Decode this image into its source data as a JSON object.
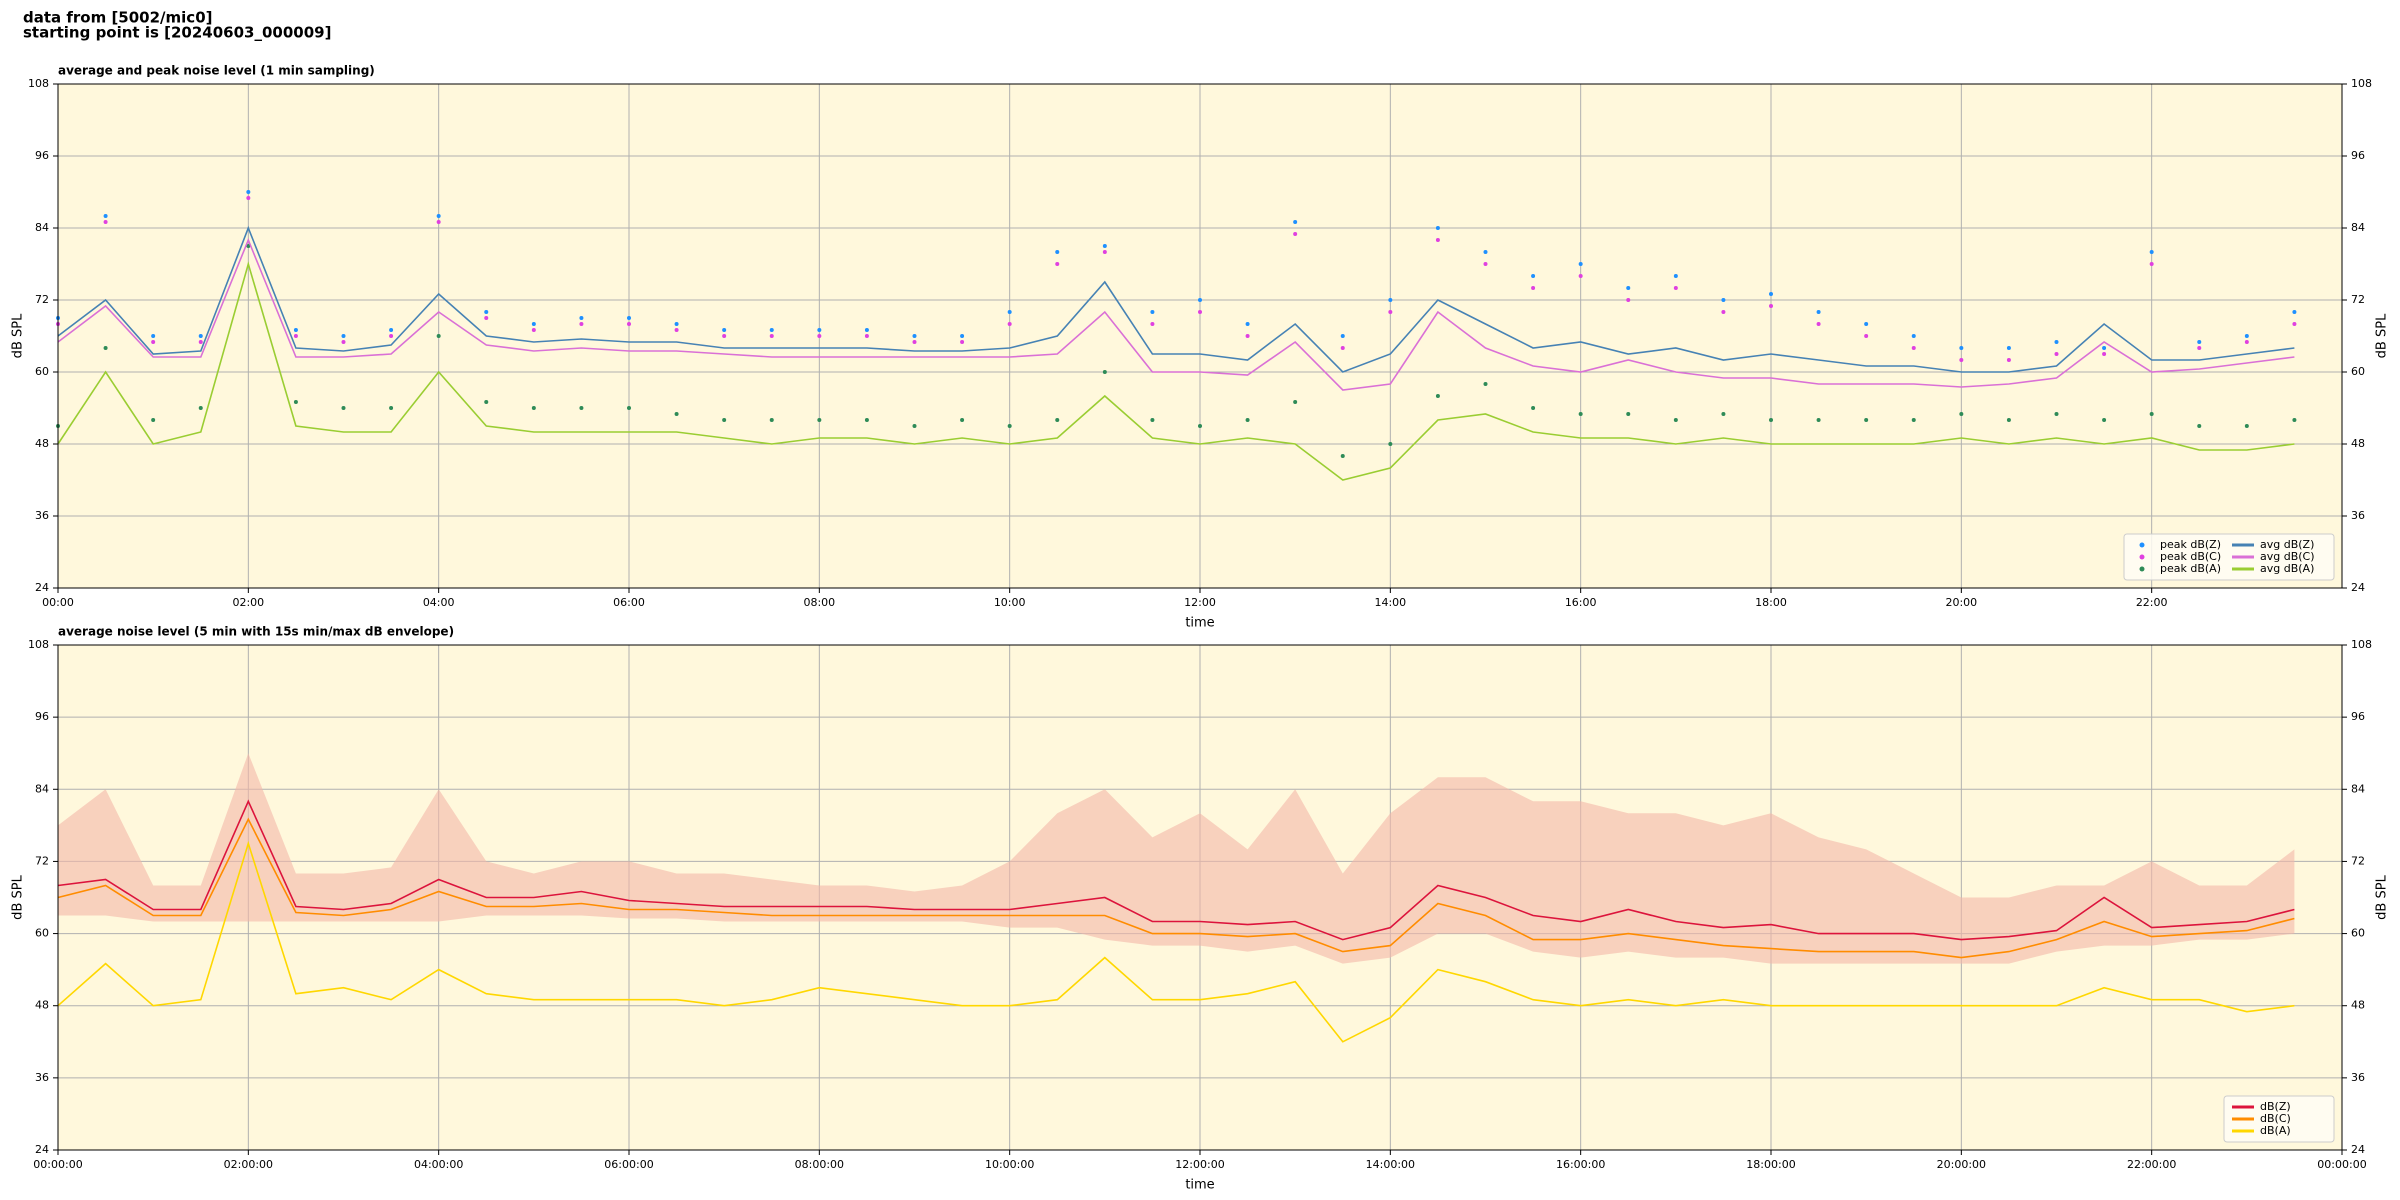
{
  "header": {
    "lines": [
      "data from [5002/mic0]",
      "starting point is [20240603_000009]"
    ]
  },
  "chart_data": [
    {
      "type": "line",
      "title": "average and peak noise level (1 min sampling)",
      "xlabel": "time",
      "ylabel": "dB SPL",
      "background": "#fff8dc",
      "grid": true,
      "legend": "lower right",
      "legend_columns": 2,
      "xlim": [
        0,
        24
      ],
      "ylim": [
        24,
        108
      ],
      "xticks": [
        {
          "value": 0,
          "label": "00:00"
        },
        {
          "value": 2,
          "label": "02:00"
        },
        {
          "value": 4,
          "label": "04:00"
        },
        {
          "value": 6,
          "label": "06:00"
        },
        {
          "value": 8,
          "label": "08:00"
        },
        {
          "value": 10,
          "label": "10:00"
        },
        {
          "value": 12,
          "label": "12:00"
        },
        {
          "value": 14,
          "label": "14:00"
        },
        {
          "value": 16,
          "label": "16:00"
        },
        {
          "value": 18,
          "label": "18:00"
        },
        {
          "value": 20,
          "label": "20:00"
        },
        {
          "value": 22,
          "label": "22:00"
        }
      ],
      "yticks": [
        24,
        36,
        48,
        60,
        72,
        84,
        96,
        108
      ],
      "x": [
        0,
        0.5,
        1,
        1.5,
        2,
        2.5,
        3,
        3.5,
        4,
        4.5,
        5,
        5.5,
        6,
        6.5,
        7,
        7.5,
        8,
        8.5,
        9,
        9.5,
        10,
        10.5,
        11,
        11.5,
        12,
        12.5,
        13,
        13.5,
        14,
        14.5,
        15,
        15.5,
        16,
        16.5,
        17,
        17.5,
        18,
        18.5,
        19,
        19.5,
        20,
        20.5,
        21,
        21.5,
        22,
        22.5,
        23,
        23.5
      ],
      "series": [
        {
          "name": "peak dB(Z)",
          "type": "scatter",
          "color": "#1e90ff",
          "values": [
            69,
            86,
            66,
            66,
            90,
            67,
            66,
            67,
            86,
            70,
            68,
            69,
            69,
            68,
            67,
            67,
            67,
            67,
            66,
            66,
            70,
            80,
            81,
            70,
            72,
            68,
            85,
            66,
            72,
            84,
            80,
            76,
            78,
            74,
            76,
            72,
            73,
            70,
            68,
            66,
            64,
            64,
            65,
            64,
            80,
            65,
            66,
            70
          ]
        },
        {
          "name": "peak dB(C)",
          "type": "scatter",
          "color": "#e040e0",
          "values": [
            68,
            85,
            65,
            65,
            89,
            66,
            65,
            66,
            85,
            69,
            67,
            68,
            68,
            67,
            66,
            66,
            66,
            66,
            65,
            65,
            68,
            78,
            80,
            68,
            70,
            66,
            83,
            64,
            70,
            82,
            78,
            74,
            76,
            72,
            74,
            70,
            71,
            68,
            66,
            64,
            62,
            62,
            63,
            63,
            78,
            64,
            65,
            68
          ]
        },
        {
          "name": "peak dB(A)",
          "type": "scatter",
          "color": "#2e8b57",
          "values": [
            51,
            64,
            52,
            54,
            81,
            55,
            54,
            54,
            66,
            55,
            54,
            54,
            54,
            53,
            52,
            52,
            52,
            52,
            51,
            52,
            51,
            52,
            60,
            52,
            51,
            52,
            55,
            46,
            48,
            56,
            58,
            54,
            53,
            53,
            52,
            53,
            52,
            52,
            52,
            52,
            53,
            52,
            53,
            52,
            53,
            51,
            51,
            52
          ]
        },
        {
          "name": "avg dB(Z)",
          "type": "line",
          "color": "#4682b4",
          "values": [
            66,
            72,
            63,
            63.5,
            84,
            64,
            63.5,
            64.5,
            73,
            66,
            65,
            65.5,
            65,
            65,
            64,
            64,
            64,
            64,
            63.5,
            63.5,
            64,
            66,
            75,
            63,
            63,
            62,
            68,
            60,
            63,
            72,
            68,
            64,
            65,
            63,
            64,
            62,
            63,
            62,
            61,
            61,
            60,
            60,
            61,
            68,
            62,
            62,
            63,
            64
          ]
        },
        {
          "name": "avg dB(C)",
          "type": "line",
          "color": "#da70d6",
          "values": [
            65,
            71,
            62.5,
            62.5,
            82,
            62.5,
            62.5,
            63,
            70,
            64.5,
            63.5,
            64,
            63.5,
            63.5,
            63,
            62.5,
            62.5,
            62.5,
            62.5,
            62.5,
            62.5,
            63,
            70,
            60,
            60,
            59.5,
            65,
            57,
            58,
            70,
            64,
            61,
            60,
            62,
            60,
            59,
            59,
            58,
            58,
            58,
            57.5,
            58,
            59,
            65,
            60,
            60.5,
            61.5,
            62.5
          ]
        },
        {
          "name": "avg dB(A)",
          "type": "line",
          "color": "#9acd32",
          "values": [
            48,
            60,
            48,
            50,
            78,
            51,
            50,
            50,
            60,
            51,
            50,
            50,
            50,
            50,
            49,
            48,
            49,
            49,
            48,
            49,
            48,
            49,
            56,
            49,
            48,
            49,
            48,
            42,
            44,
            52,
            53,
            50,
            49,
            49,
            48,
            49,
            48,
            48,
            48,
            48,
            49,
            48,
            49,
            48,
            49,
            47,
            47,
            48
          ]
        }
      ]
    },
    {
      "type": "line",
      "title": "average noise level (5 min with 15s min/max dB envelope)",
      "xlabel": "time",
      "ylabel": "dB SPL",
      "background": "#fff8dc",
      "grid": true,
      "legend": "lower right",
      "legend_columns": 1,
      "xlim": [
        0,
        24
      ],
      "ylim": [
        24,
        108
      ],
      "xticks": [
        {
          "value": 0,
          "label": "00:00:00"
        },
        {
          "value": 2,
          "label": "02:00:00"
        },
        {
          "value": 4,
          "label": "04:00:00"
        },
        {
          "value": 6,
          "label": "06:00:00"
        },
        {
          "value": 8,
          "label": "08:00:00"
        },
        {
          "value": 10,
          "label": "10:00:00"
        },
        {
          "value": 12,
          "label": "12:00:00"
        },
        {
          "value": 14,
          "label": "14:00:00"
        },
        {
          "value": 16,
          "label": "16:00:00"
        },
        {
          "value": 18,
          "label": "18:00:00"
        },
        {
          "value": 20,
          "label": "20:00:00"
        },
        {
          "value": 22,
          "label": "22:00:00"
        },
        {
          "value": 24,
          "label": "00:00:00"
        }
      ],
      "yticks": [
        24,
        36,
        48,
        60,
        72,
        84,
        96,
        108
      ],
      "x": [
        0,
        0.5,
        1,
        1.5,
        2,
        2.5,
        3,
        3.5,
        4,
        4.5,
        5,
        5.5,
        6,
        6.5,
        7,
        7.5,
        8,
        8.5,
        9,
        9.5,
        10,
        10.5,
        11,
        11.5,
        12,
        12.5,
        13,
        13.5,
        14,
        14.5,
        15,
        15.5,
        16,
        16.5,
        17,
        17.5,
        18,
        18.5,
        19,
        19.5,
        20,
        20.5,
        21,
        21.5,
        22,
        22.5,
        23,
        23.5
      ],
      "envelope": {
        "color": "#f4b8a8",
        "upper": [
          78,
          84,
          68,
          68,
          90,
          70,
          70,
          71,
          84,
          72,
          70,
          72,
          72,
          70,
          70,
          69,
          68,
          68,
          67,
          68,
          72,
          80,
          84,
          76,
          80,
          74,
          84,
          70,
          80,
          86,
          86,
          82,
          82,
          80,
          80,
          78,
          80,
          76,
          74,
          70,
          66,
          66,
          68,
          68,
          72,
          68,
          68,
          74
        ],
        "lower": [
          63,
          63,
          62,
          62,
          62,
          62,
          62,
          62,
          62,
          63,
          63,
          63,
          62.5,
          62.5,
          62,
          62,
          62,
          62,
          62,
          62,
          61,
          61,
          59,
          58,
          58,
          57,
          58,
          55,
          56,
          60,
          60,
          57,
          56,
          57,
          56,
          56,
          55,
          55,
          55,
          55,
          55,
          55,
          57,
          58,
          58,
          59,
          59,
          60
        ]
      },
      "series": [
        {
          "name": "dB(Z)",
          "type": "line",
          "color": "#dc143c",
          "values": [
            68,
            69,
            64,
            64,
            82,
            64.5,
            64,
            65,
            69,
            66,
            66,
            67,
            65.5,
            65,
            64.5,
            64.5,
            64.5,
            64.5,
            64,
            64,
            64,
            65,
            66,
            62,
            62,
            61.5,
            62,
            59,
            61,
            68,
            66,
            63,
            62,
            64,
            62,
            61,
            61.5,
            60,
            60,
            60,
            59,
            59.5,
            60.5,
            66,
            61,
            61.5,
            62,
            64
          ]
        },
        {
          "name": "dB(C)",
          "type": "line",
          "color": "#ff8c00",
          "values": [
            66,
            68,
            63,
            63,
            79,
            63.5,
            63,
            64,
            67,
            64.5,
            64.5,
            65,
            64,
            64,
            63.5,
            63,
            63,
            63,
            63,
            63,
            63,
            63,
            63,
            60,
            60,
            59.5,
            60,
            57,
            58,
            65,
            63,
            59,
            59,
            60,
            59,
            58,
            57.5,
            57,
            57,
            57,
            56,
            57,
            59,
            62,
            59.5,
            60,
            60.5,
            62.5
          ]
        },
        {
          "name": "dB(A)",
          "type": "line",
          "color": "#ffd700",
          "values": [
            48,
            55,
            48,
            49,
            75,
            50,
            51,
            49,
            54,
            50,
            49,
            49,
            49,
            49,
            48,
            49,
            51,
            50,
            49,
            48,
            48,
            49,
            56,
            49,
            49,
            50,
            52,
            42,
            46,
            54,
            52,
            49,
            48,
            49,
            48,
            49,
            48,
            48,
            48,
            48,
            48,
            48,
            48,
            51,
            49,
            49,
            47,
            48
          ]
        }
      ]
    }
  ]
}
